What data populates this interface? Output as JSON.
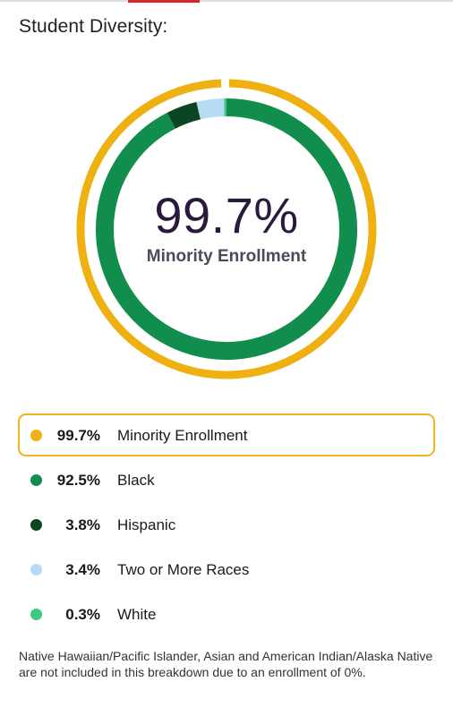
{
  "title": "Student Diversity:",
  "colors": {
    "minority": "#eeb111",
    "black": "#118d4e",
    "hispanic": "#0c4524",
    "two_or_more": "#b6dcf5",
    "white": "#3ec984",
    "highlight_border": "#f0b51a"
  },
  "chart_data": {
    "type": "donut",
    "center_value": "99.7%",
    "center_label": "Minority Enrollment",
    "outer_ring": [
      {
        "name": "Minority Enrollment",
        "value": 99.7,
        "color": "#eeb111"
      }
    ],
    "inner_ring": [
      {
        "name": "Black",
        "value": 92.5,
        "color": "#118d4e"
      },
      {
        "name": "Hispanic",
        "value": 3.8,
        "color": "#0c4524"
      },
      {
        "name": "Two or More Races",
        "value": 3.4,
        "color": "#b6dcf5"
      },
      {
        "name": "White",
        "value": 0.3,
        "color": "#3ec984"
      }
    ]
  },
  "legend": [
    {
      "pct": "99.7%",
      "label": "Minority Enrollment",
      "color": "#eeb111",
      "highlighted": true
    },
    {
      "pct": "92.5%",
      "label": "Black",
      "color": "#118d4e",
      "highlighted": false
    },
    {
      "pct": "3.8%",
      "label": "Hispanic",
      "color": "#0c4524",
      "highlighted": false
    },
    {
      "pct": "3.4%",
      "label": "Two or More Races",
      "color": "#b6dcf5",
      "highlighted": false
    },
    {
      "pct": "0.3%",
      "label": "White",
      "color": "#3ec984",
      "highlighted": false
    }
  ],
  "note": "Native Hawaiian/Pacific Islander, Asian and American Indian/Alaska Native are not included in this breakdown due to an enrollment of 0%."
}
